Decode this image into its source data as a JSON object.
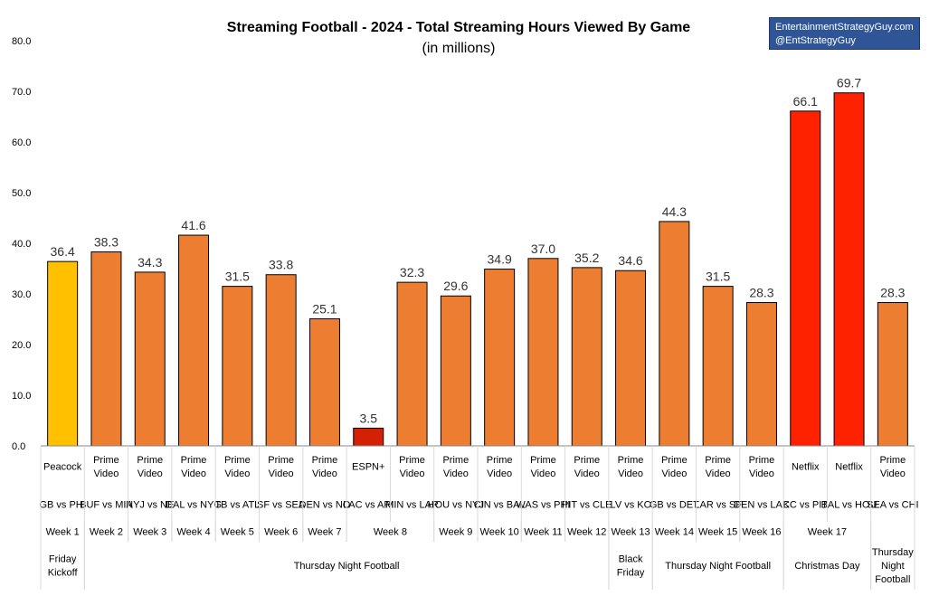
{
  "credit": {
    "line1": "EntertainmentStrategyGuy.com",
    "line2": "@EntStrategyGuy"
  },
  "chart_data": {
    "type": "bar",
    "title": "Streaming Football - 2024 - Total Streaming Hours Viewed By Game",
    "subtitle": "(in millions)",
    "ylim": [
      0,
      80
    ],
    "yticks": [
      "0.0",
      "10.0",
      "20.0",
      "30.0",
      "40.0",
      "50.0",
      "60.0",
      "70.0",
      "80.0"
    ],
    "grid": false,
    "colors": {
      "Peacock": "#ffc000",
      "Prime Video": "#ed7d31",
      "ESPN+": "#d42004",
      "Netflix": "#ff2200"
    },
    "categories": [
      {
        "service": "Peacock",
        "matchup": "GB vs PHI"
      },
      {
        "service": "Prime Video",
        "matchup": "BUF vs MIA"
      },
      {
        "service": "Prime Video",
        "matchup": "NYJ vs NE"
      },
      {
        "service": "Prime Video",
        "matchup": "DAL vs NYG"
      },
      {
        "service": "Prime Video",
        "matchup": "TB vs ATL"
      },
      {
        "service": "Prime Video",
        "matchup": "SF vs SEA"
      },
      {
        "service": "Prime Video",
        "matchup": "DEN vs NO"
      },
      {
        "service": "ESPN+",
        "matchup": "LAC vs ARI"
      },
      {
        "service": "Prime Video",
        "matchup": "MIN vs LAR"
      },
      {
        "service": "Prime Video",
        "matchup": "HOU vs NYJ"
      },
      {
        "service": "Prime Video",
        "matchup": "CIN vs BAL"
      },
      {
        "service": "Prime Video",
        "matchup": "WAS vs PHI"
      },
      {
        "service": "Prime Video",
        "matchup": "PIT vs CLE"
      },
      {
        "service": "Prime Video",
        "matchup": "LV vs KC"
      },
      {
        "service": "Prime Video",
        "matchup": "GB vs DET"
      },
      {
        "service": "Prime Video",
        "matchup": "LAR vs SF"
      },
      {
        "service": "Prime Video",
        "matchup": "DEN vs LAC"
      },
      {
        "service": "Netflix",
        "matchup": "KC vs PIT"
      },
      {
        "service": "Netflix",
        "matchup": "BAL vs HOU"
      },
      {
        "service": "Prime Video",
        "matchup": "SEA vs CHI"
      }
    ],
    "values": [
      36.4,
      38.3,
      34.3,
      41.6,
      31.5,
      33.8,
      25.1,
      3.5,
      32.3,
      29.6,
      34.9,
      37.0,
      35.2,
      34.6,
      44.3,
      31.5,
      28.3,
      66.1,
      69.7,
      28.3
    ],
    "value_labels": [
      "36.4",
      "38.3",
      "34.3",
      "41.6",
      "31.5",
      "33.8",
      "25.1",
      "3.5",
      "32.3",
      "29.6",
      "34.9",
      "37.0",
      "35.2",
      "34.6",
      "44.3",
      "31.5",
      "28.3",
      "66.1",
      "69.7",
      "28.3"
    ],
    "weeks": [
      {
        "label": "Week 1",
        "start": 0,
        "end": 0
      },
      {
        "label": "Week 2",
        "start": 1,
        "end": 1
      },
      {
        "label": "Week 3",
        "start": 2,
        "end": 2
      },
      {
        "label": "Week 4",
        "start": 3,
        "end": 3
      },
      {
        "label": "Week 5",
        "start": 4,
        "end": 4
      },
      {
        "label": "Week 6",
        "start": 5,
        "end": 5
      },
      {
        "label": "Week 7",
        "start": 6,
        "end": 6
      },
      {
        "label": "Week 8",
        "start": 7,
        "end": 8
      },
      {
        "label": "Week 9",
        "start": 9,
        "end": 9
      },
      {
        "label": "Week 10",
        "start": 10,
        "end": 10
      },
      {
        "label": "Week 11",
        "start": 11,
        "end": 11
      },
      {
        "label": "Week 12",
        "start": 12,
        "end": 12
      },
      {
        "label": "Week 13",
        "start": 13,
        "end": 13
      },
      {
        "label": "Week 14",
        "start": 14,
        "end": 14
      },
      {
        "label": "Week 15",
        "start": 15,
        "end": 15
      },
      {
        "label": "Week 16",
        "start": 16,
        "end": 16
      },
      {
        "label": "Week 17",
        "start": 17,
        "end": 18
      },
      {
        "label": "",
        "start": 19,
        "end": 19
      }
    ],
    "events": [
      {
        "label": "Friday Kickoff",
        "start": 0,
        "end": 0
      },
      {
        "label": "Thursday Night Football",
        "start": 1,
        "end": 12
      },
      {
        "label": "Black Friday",
        "start": 13,
        "end": 13
      },
      {
        "label": "Thursday Night Football",
        "start": 14,
        "end": 16
      },
      {
        "label": "Christmas Day",
        "start": 17,
        "end": 18
      },
      {
        "label": "Thursday Night Football",
        "start": 19,
        "end": 19
      }
    ]
  }
}
